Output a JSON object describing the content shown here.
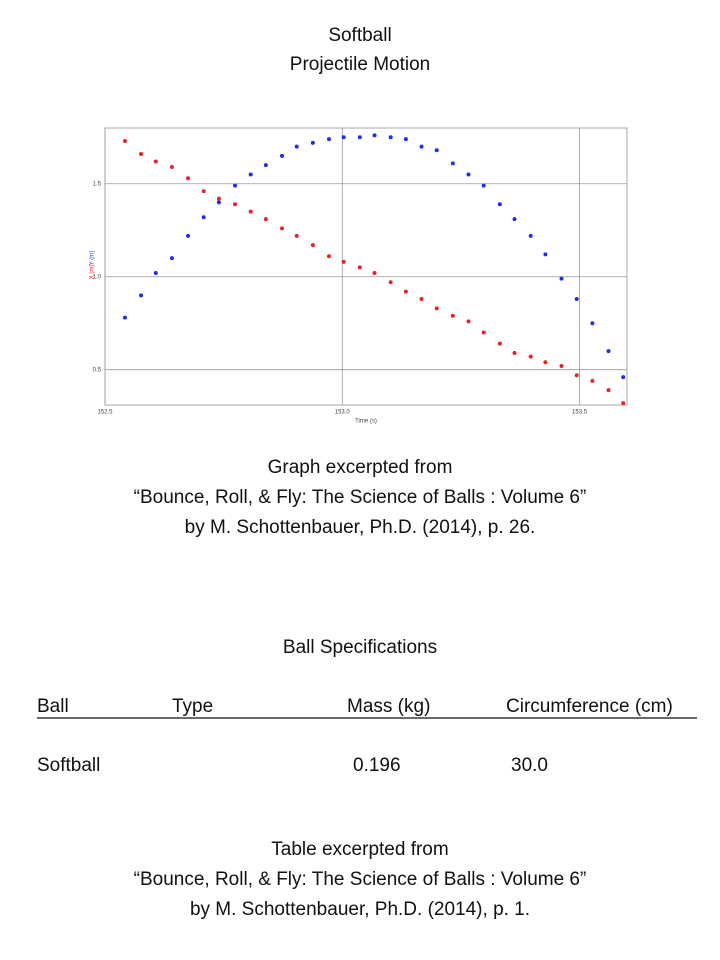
{
  "header": {
    "title": "Softball",
    "subtitle": "Projectile Motion"
  },
  "chart_data": {
    "type": "scatter",
    "xlabel": "Time (s)",
    "xlim": [
      152.5,
      153.6
    ],
    "ylim": [
      0.31,
      1.8
    ],
    "xticks": [
      {
        "value": 152.5,
        "label": "152.5"
      },
      {
        "value": 153.0,
        "label": "153.0"
      },
      {
        "value": 153.5,
        "label": "153.5"
      }
    ],
    "yticks": [
      0.5,
      {
        "value": 1.0,
        "label": "1.0"
      },
      {
        "value": 1.5,
        "label": "1.5"
      }
    ],
    "grid": true,
    "x": [
      152.542,
      152.576,
      152.607,
      152.641,
      152.675,
      152.708,
      152.74,
      152.774,
      152.807,
      152.839,
      152.873,
      152.904,
      152.938,
      152.972,
      153.003,
      153.037,
      153.068,
      153.102,
      153.134,
      153.167,
      153.199,
      153.233,
      153.266,
      153.298,
      153.332,
      153.363,
      153.397,
      153.428,
      153.462,
      153.494,
      153.527,
      153.561,
      153.592
    ],
    "series": [
      {
        "name": "X (m)",
        "color": "#e8212a",
        "values": [
          1.73,
          1.66,
          1.62,
          1.59,
          1.53,
          1.46,
          1.42,
          1.39,
          1.35,
          1.31,
          1.26,
          1.22,
          1.17,
          1.11,
          1.08,
          1.05,
          1.02,
          0.97,
          0.92,
          0.88,
          0.83,
          0.79,
          0.76,
          0.7,
          0.64,
          0.59,
          0.57,
          0.54,
          0.52,
          0.47,
          0.44,
          0.39,
          0.32
        ]
      },
      {
        "name": "Y (m)",
        "color": "#1f2ee0",
        "values": [
          0.78,
          0.9,
          1.02,
          1.1,
          1.22,
          1.32,
          1.4,
          1.49,
          1.55,
          1.6,
          1.65,
          1.7,
          1.72,
          1.74,
          1.75,
          1.75,
          1.76,
          1.75,
          1.74,
          1.7,
          1.68,
          1.61,
          1.55,
          1.49,
          1.39,
          1.31,
          1.22,
          1.12,
          0.99,
          0.88,
          0.75,
          0.6,
          0.46
        ]
      }
    ]
  },
  "graph_caption": [
    "Graph excerpted from",
    "“Bounce, Roll, & Fly: The Science of Balls : Volume 6”",
    "by M. Schottenbauer, Ph.D. (2014), p. 26."
  ],
  "table": {
    "title": "Ball Specifications",
    "headers": [
      "Ball",
      "Type",
      "Mass (kg)",
      "Circumference (cm)"
    ],
    "rows": [
      {
        "ball": "Softball",
        "mass": "0.196",
        "circumference": "30.0"
      }
    ]
  },
  "table_caption": [
    "Table excerpted from",
    "“Bounce, Roll, & Fly: The Science of Balls : Volume 6”",
    "by M. Schottenbauer, Ph.D. (2014), p. 1."
  ]
}
